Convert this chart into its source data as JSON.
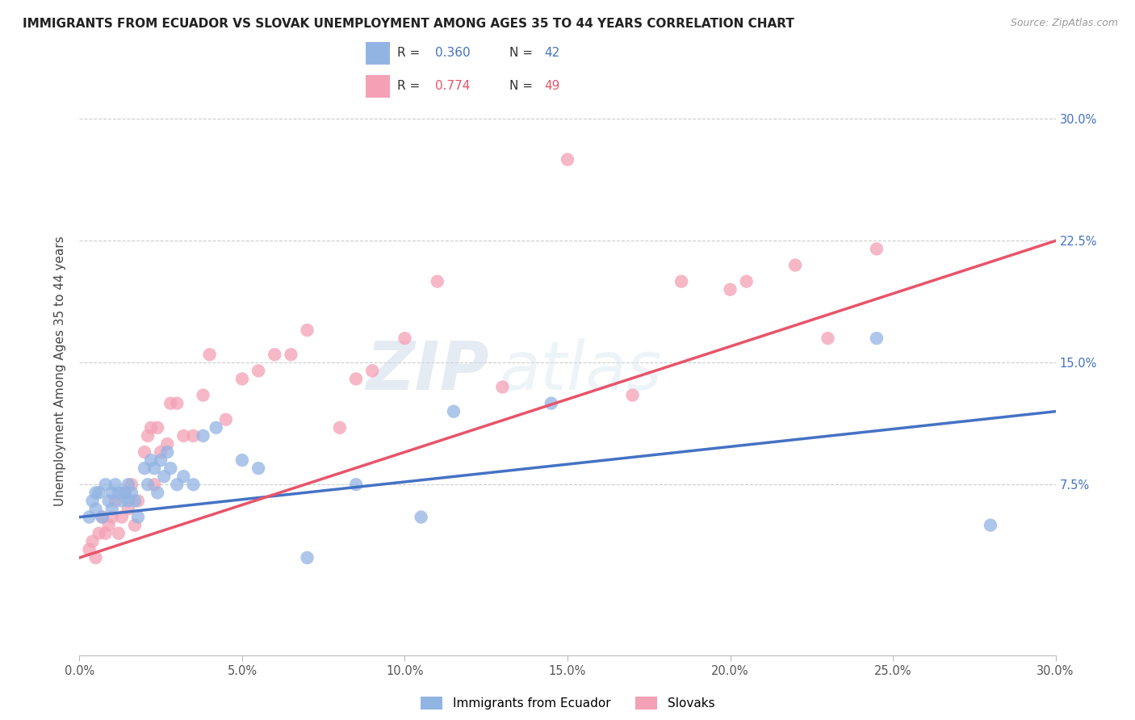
{
  "title": "IMMIGRANTS FROM ECUADOR VS SLOVAK UNEMPLOYMENT AMONG AGES 35 TO 44 YEARS CORRELATION CHART",
  "source": "Source: ZipAtlas.com",
  "ylabel": "Unemployment Among Ages 35 to 44 years",
  "xlim": [
    0.0,
    30.0
  ],
  "ylim": [
    -3.0,
    32.0
  ],
  "yticks": [
    7.5,
    15.0,
    22.5,
    30.0
  ],
  "xticks": [
    0.0,
    5.0,
    10.0,
    15.0,
    20.0,
    25.0,
    30.0
  ],
  "legend_blue_r": "0.360",
  "legend_blue_n": "42",
  "legend_pink_r": "0.774",
  "legend_pink_n": "49",
  "legend_label_blue": "Immigrants from Ecuador",
  "legend_label_pink": "Slovaks",
  "blue_color": "#92b4e3",
  "pink_color": "#f4a0b5",
  "blue_line_color": "#4472c4",
  "pink_line_color": "#e8546a",
  "watermark_zip": "ZIP",
  "watermark_atlas": "atlas",
  "blue_scatter_x": [
    0.3,
    0.4,
    0.5,
    0.5,
    0.6,
    0.7,
    0.8,
    0.9,
    1.0,
    1.0,
    1.1,
    1.2,
    1.3,
    1.4,
    1.5,
    1.5,
    1.6,
    1.7,
    1.8,
    2.0,
    2.1,
    2.2,
    2.3,
    2.4,
    2.5,
    2.6,
    2.7,
    2.8,
    3.0,
    3.2,
    3.5,
    3.8,
    4.2,
    5.0,
    5.5,
    7.0,
    8.5,
    10.5,
    11.5,
    14.5,
    24.5,
    28.0
  ],
  "blue_scatter_y": [
    5.5,
    6.5,
    6.0,
    7.0,
    7.0,
    5.5,
    7.5,
    6.5,
    6.0,
    7.0,
    7.5,
    7.0,
    6.5,
    7.0,
    6.5,
    7.5,
    7.0,
    6.5,
    5.5,
    8.5,
    7.5,
    9.0,
    8.5,
    7.0,
    9.0,
    8.0,
    9.5,
    8.5,
    7.5,
    8.0,
    7.5,
    10.5,
    11.0,
    9.0,
    8.5,
    3.0,
    7.5,
    5.5,
    12.0,
    12.5,
    16.5,
    5.0
  ],
  "pink_scatter_x": [
    0.3,
    0.4,
    0.5,
    0.6,
    0.7,
    0.8,
    0.9,
    1.0,
    1.1,
    1.2,
    1.3,
    1.4,
    1.5,
    1.6,
    1.7,
    1.8,
    2.0,
    2.1,
    2.2,
    2.3,
    2.4,
    2.5,
    2.7,
    2.8,
    3.0,
    3.2,
    3.5,
    3.8,
    4.0,
    4.5,
    5.0,
    5.5,
    6.0,
    6.5,
    7.0,
    8.0,
    8.5,
    9.0,
    10.0,
    11.0,
    13.0,
    15.0,
    17.0,
    18.5,
    20.0,
    20.5,
    22.0,
    23.0,
    24.5
  ],
  "pink_scatter_y": [
    3.5,
    4.0,
    3.0,
    4.5,
    5.5,
    4.5,
    5.0,
    5.5,
    6.5,
    4.5,
    5.5,
    7.0,
    6.0,
    7.5,
    5.0,
    6.5,
    9.5,
    10.5,
    11.0,
    7.5,
    11.0,
    9.5,
    10.0,
    12.5,
    12.5,
    10.5,
    10.5,
    13.0,
    15.5,
    11.5,
    14.0,
    14.5,
    15.5,
    15.5,
    17.0,
    11.0,
    14.0,
    14.5,
    16.5,
    20.0,
    13.5,
    27.5,
    13.0,
    20.0,
    19.5,
    20.0,
    21.0,
    16.5,
    22.0
  ],
  "blue_line_x0": 0.0,
  "blue_line_y0": 5.5,
  "blue_line_x1": 30.0,
  "blue_line_y1": 12.0,
  "pink_line_x0": 0.0,
  "pink_line_y0": 3.0,
  "pink_line_x1": 30.0,
  "pink_line_y1": 22.5
}
